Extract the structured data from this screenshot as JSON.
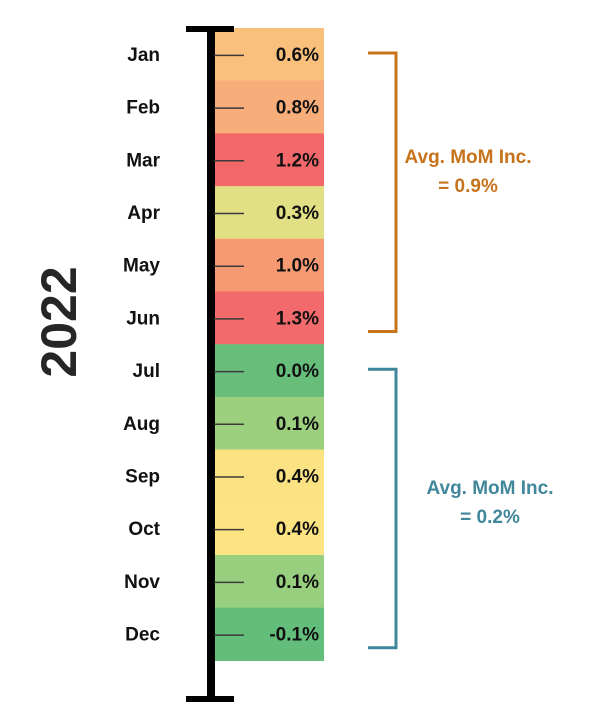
{
  "chart_data": {
    "type": "heatmap",
    "year_label": "2022",
    "categories": [
      "Jan",
      "Feb",
      "Mar",
      "Apr",
      "May",
      "Jun",
      "Jul",
      "Aug",
      "Sep",
      "Oct",
      "Nov",
      "Dec"
    ],
    "values": [
      0.6,
      0.8,
      1.2,
      0.3,
      1.0,
      1.3,
      0.0,
      0.1,
      0.4,
      0.4,
      0.1,
      -0.1
    ],
    "value_labels": [
      "0.6%",
      "0.8%",
      "1.2%",
      "0.3%",
      "1.0%",
      "1.3%",
      "0.0%",
      "0.1%",
      "0.4%",
      "0.4%",
      "0.1%",
      "-0.1%"
    ],
    "cell_colors": [
      "#f8c07b",
      "#f8ae7a",
      "#f2686a",
      "#e2e084",
      "#f69a73",
      "#f26a6b",
      "#67be7b",
      "#9dd07e",
      "#fbe283",
      "#fde483",
      "#98cf7e",
      "#63be7b"
    ],
    "annotations": [
      {
        "line1": "Avg. MoM Inc.",
        "line2": "= 0.9%",
        "from": "Jan",
        "to": "Jun",
        "color": "#c7731c"
      },
      {
        "line1": "Avg. MoM Inc.",
        "line2": "= 0.2%",
        "from": "Jul",
        "to": "Dec",
        "color": "#41879b"
      }
    ]
  }
}
